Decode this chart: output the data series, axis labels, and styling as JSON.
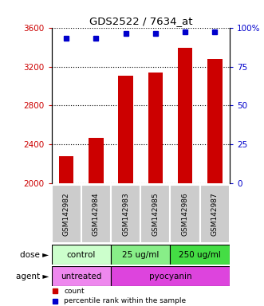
{
  "title": "GDS2522 / 7634_at",
  "samples": [
    "GSM142982",
    "GSM142984",
    "GSM142983",
    "GSM142985",
    "GSM142986",
    "GSM142987"
  ],
  "bar_values": [
    2280,
    2470,
    3110,
    3140,
    3390,
    3280
  ],
  "percentile_values": [
    93,
    93,
    96,
    96,
    97,
    97
  ],
  "ylim_left": [
    2000,
    3600
  ],
  "ylim_right": [
    0,
    100
  ],
  "yticks_left": [
    2000,
    2400,
    2800,
    3200,
    3600
  ],
  "yticks_right": [
    0,
    25,
    50,
    75,
    100
  ],
  "ytick_labels_right": [
    "0",
    "25",
    "50",
    "75",
    "100%"
  ],
  "bar_color": "#cc0000",
  "dot_color": "#0000cc",
  "dose_groups": [
    {
      "label": "control",
      "span": [
        0,
        2
      ],
      "color": "#ccffcc"
    },
    {
      "label": "25 ug/ml",
      "span": [
        2,
        4
      ],
      "color": "#88ee88"
    },
    {
      "label": "250 ug/ml",
      "span": [
        4,
        6
      ],
      "color": "#44dd44"
    }
  ],
  "agent_groups": [
    {
      "label": "untreated",
      "span": [
        0,
        2
      ],
      "color": "#ee88ee"
    },
    {
      "label": "pyocyanin",
      "span": [
        2,
        6
      ],
      "color": "#dd44dd"
    }
  ],
  "dose_label": "dose",
  "agent_label": "agent",
  "legend_items": [
    {
      "color": "#cc0000",
      "label": "count"
    },
    {
      "color": "#0000cc",
      "label": "percentile rank within the sample"
    }
  ],
  "left_axis_color": "#cc0000",
  "right_axis_color": "#0000cc",
  "sample_bg_color": "#cccccc",
  "figsize": [
    3.31,
    3.84
  ],
  "dpi": 100
}
